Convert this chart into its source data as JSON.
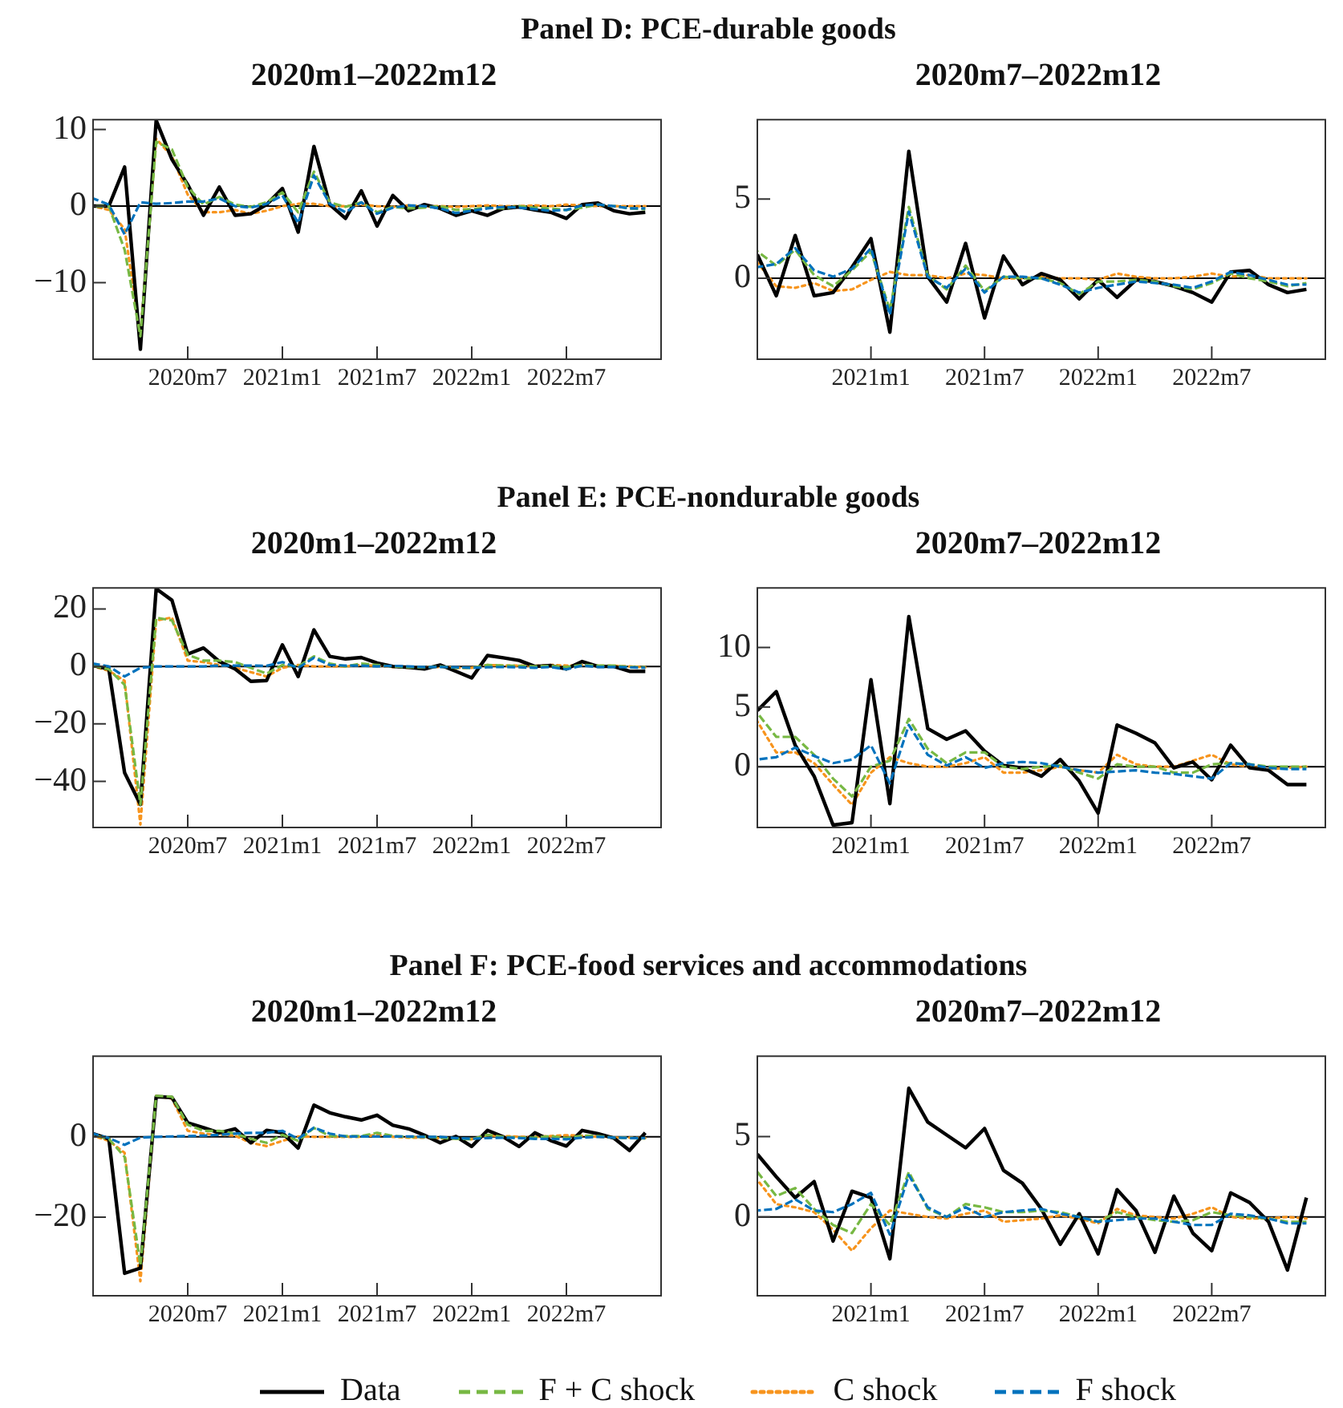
{
  "chart_data": [
    {
      "type": "line",
      "title": "2020m1–2022m12",
      "legend": "bottom",
      "annotations": [
        "Panel D: PCE-durable goods"
      ],
      "x": [
        "2020-01",
        "2020-02",
        "2020-03",
        "2020-04",
        "2020-05",
        "2020-06",
        "2020-07",
        "2020-08",
        "2020-09",
        "2020-10",
        "2020-11",
        "2020-12",
        "2021-01",
        "2021-02",
        "2021-03",
        "2021-04",
        "2021-05",
        "2021-06",
        "2021-07",
        "2021-08",
        "2021-09",
        "2021-10",
        "2021-11",
        "2021-12",
        "2022-01",
        "2022-02",
        "2022-03",
        "2022-04",
        "2022-05",
        "2022-06",
        "2022-07",
        "2022-08",
        "2022-09",
        "2022-10",
        "2022-11",
        "2022-12"
      ],
      "xlim": [
        "2020-01",
        "2023-01"
      ],
      "xticks": [
        {
          "value": "2020-07",
          "label": "2020m7"
        },
        {
          "value": "2021-01",
          "label": "2021m1"
        },
        {
          "value": "2021-07",
          "label": "2021m7"
        },
        {
          "value": "2022-01",
          "label": "2022m1"
        },
        {
          "value": "2022-07",
          "label": "2022m7"
        }
      ],
      "ylim": [
        -20,
        11.3
      ],
      "yticks": [
        -10,
        0,
        10
      ],
      "ref_lines": [
        {
          "axis": "y",
          "value": 0
        }
      ],
      "series": [
        {
          "name": "Data",
          "color": "#000000",
          "line_style": "solid",
          "values": [
            0,
            0,
            5.1,
            -18.7,
            11.2,
            6.1,
            2.8,
            -1.2,
            2.5,
            -1.2,
            -1.0,
            0.2,
            2.3,
            -3.4,
            7.8,
            0.2,
            -1.6,
            2.0,
            -2.6,
            1.4,
            -0.6,
            0.2,
            -0.3,
            -1.2,
            -0.6,
            -1.2,
            -0.3,
            -0.1,
            -0.5,
            -0.8,
            -1.6,
            0.2,
            0.4,
            -0.6,
            -1.0,
            -0.8
          ]
        },
        {
          "name": "F + C shock",
          "color": "#77b843",
          "line_style": "dashed",
          "values": [
            0,
            0,
            -5.7,
            -17,
            8.4,
            7.4,
            2.5,
            0.2,
            1.2,
            0.2,
            -0.1,
            0.5,
            1.8,
            -0.8,
            4.5,
            0.5,
            -0.1,
            0.5,
            -0.8,
            -0.1,
            -0.3,
            -0.2,
            0,
            -0.5,
            -0.4,
            -0.2,
            -0.3,
            0,
            -0.2,
            -0.3,
            -0.5,
            -0.2,
            0.2,
            0,
            -0.3,
            -0.4
          ]
        },
        {
          "name": "C shock",
          "color": "#f7941d",
          "line_style": "dotted",
          "values": [
            0,
            -0.5,
            -3,
            -17,
            8.8,
            6.5,
            1.5,
            -0.8,
            -0.8,
            -0.5,
            -1.0,
            -0.6,
            0,
            0.3,
            0.3,
            0,
            0,
            0.2,
            0,
            -0.1,
            0.1,
            0,
            0,
            -0.1,
            0,
            0.1,
            0,
            0,
            0.1,
            0,
            0.2,
            0.1,
            0,
            0,
            0,
            0
          ]
        },
        {
          "name": "F shock",
          "color": "#0072bd",
          "line_style": "dashed",
          "values": [
            1.0,
            0.2,
            -3.7,
            0.5,
            0.3,
            0.4,
            0.6,
            0.6,
            1.0,
            0,
            -0.2,
            0.3,
            1.4,
            -2.2,
            4.0,
            0.3,
            -0.8,
            0.5,
            -1.0,
            -0.2,
            0.1,
            0,
            -0.3,
            -0.9,
            -0.6,
            -0.3,
            -0.1,
            -0.2,
            -0.4,
            -0.6,
            -0.5,
            0.1,
            0.2,
            0,
            -0.3,
            -0.3
          ]
        }
      ]
    },
    {
      "type": "line",
      "title": "2020m7–2022m12",
      "legend": "bottom",
      "x": [
        "2020-07",
        "2020-08",
        "2020-09",
        "2020-10",
        "2020-11",
        "2020-12",
        "2021-01",
        "2021-02",
        "2021-03",
        "2021-04",
        "2021-05",
        "2021-06",
        "2021-07",
        "2021-08",
        "2021-09",
        "2021-10",
        "2021-11",
        "2021-12",
        "2022-01",
        "2022-02",
        "2022-03",
        "2022-04",
        "2022-05",
        "2022-06",
        "2022-07",
        "2022-08",
        "2022-09",
        "2022-10",
        "2022-11",
        "2022-12"
      ],
      "xlim": [
        "2020-07",
        "2023-01"
      ],
      "xticks": [
        {
          "value": "2021-01",
          "label": "2021m1"
        },
        {
          "value": "2021-07",
          "label": "2021m7"
        },
        {
          "value": "2022-01",
          "label": "2022m1"
        },
        {
          "value": "2022-07",
          "label": "2022m7"
        }
      ],
      "ylim": [
        -5.1,
        10
      ],
      "yticks": [
        0,
        5
      ],
      "ref_lines": [
        {
          "axis": "y",
          "value": 0
        }
      ],
      "series": [
        {
          "name": "Data",
          "color": "#000000",
          "line_style": "solid",
          "values": [
            1.5,
            -1.1,
            2.7,
            -1.1,
            -0.9,
            0.7,
            2.5,
            -3.4,
            8.0,
            0.1,
            -1.5,
            2.2,
            -2.5,
            1.4,
            -0.4,
            0.3,
            -0.1,
            -1.3,
            -0.1,
            -1.2,
            -0.1,
            -0.2,
            -0.5,
            -0.9,
            -1.5,
            0.4,
            0.5,
            -0.4,
            -0.9,
            -0.7
          ]
        },
        {
          "name": "F + C shock",
          "color": "#77b843",
          "line_style": "dashed",
          "values": [
            1.7,
            0.8,
            1.8,
            0.2,
            -0.5,
            0.5,
            1.7,
            -2.0,
            4.5,
            0.2,
            -0.7,
            0.8,
            -0.8,
            0.1,
            0,
            0,
            -0.3,
            -1.0,
            -0.2,
            -0.2,
            -0.1,
            -0.2,
            -0.5,
            -0.7,
            -0.3,
            0.3,
            0,
            -0.2,
            -0.5,
            -0.3
          ]
        },
        {
          "name": "C shock",
          "color": "#f7941d",
          "line_style": "dotted",
          "values": [
            1.0,
            -0.5,
            -0.6,
            -0.3,
            -0.8,
            -0.7,
            -0.1,
            0.4,
            0.2,
            0.2,
            0,
            0.3,
            0.2,
            0,
            0,
            0.1,
            0,
            0,
            -0.1,
            0.3,
            0.1,
            0,
            0,
            0.1,
            0.3,
            0.1,
            0.2,
            0,
            0,
            0
          ]
        },
        {
          "name": "F shock",
          "color": "#0072bd",
          "line_style": "dashed",
          "values": [
            0.7,
            0.9,
            1.9,
            0.5,
            0.1,
            0.6,
            1.9,
            -2.3,
            4.2,
            0.1,
            -0.6,
            0.6,
            -0.9,
            0.1,
            0.1,
            0,
            -0.4,
            -0.9,
            -0.6,
            -0.4,
            -0.2,
            -0.3,
            -0.4,
            -0.6,
            -0.2,
            0.4,
            0.2,
            -0.1,
            -0.4,
            -0.4
          ]
        }
      ]
    },
    {
      "type": "line",
      "title": "2020m1–2022m12",
      "legend": "bottom",
      "annotations": [
        "Panel E: PCE-nondurable goods"
      ],
      "x": [
        "2020-01",
        "2020-02",
        "2020-03",
        "2020-04",
        "2020-05",
        "2020-06",
        "2020-07",
        "2020-08",
        "2020-09",
        "2020-10",
        "2020-11",
        "2020-12",
        "2021-01",
        "2021-02",
        "2021-03",
        "2021-04",
        "2021-05",
        "2021-06",
        "2021-07",
        "2021-08",
        "2021-09",
        "2021-10",
        "2021-11",
        "2021-12",
        "2022-01",
        "2022-02",
        "2022-03",
        "2022-04",
        "2022-05",
        "2022-06",
        "2022-07",
        "2022-08",
        "2022-09",
        "2022-10",
        "2022-11",
        "2022-12"
      ],
      "xlim": [
        "2020-01",
        "2023-01"
      ],
      "xticks": [
        {
          "value": "2020-07",
          "label": "2020m7"
        },
        {
          "value": "2021-01",
          "label": "2021m1"
        },
        {
          "value": "2021-07",
          "label": "2021m7"
        },
        {
          "value": "2022-01",
          "label": "2022m1"
        },
        {
          "value": "2022-07",
          "label": "2022m7"
        }
      ],
      "ylim": [
        -56,
        27.3
      ],
      "yticks": [
        -40,
        -20,
        0,
        20
      ],
      "ref_lines": [
        {
          "axis": "y",
          "value": 0
        }
      ],
      "series": [
        {
          "name": "Data",
          "color": "#000000",
          "line_style": "solid",
          "values": [
            0.3,
            -0.9,
            -37,
            -48,
            27,
            23,
            4.3,
            6.4,
            1.7,
            -0.9,
            -5.2,
            -4.9,
            7.5,
            -3.5,
            12.7,
            3.5,
            2.6,
            3.1,
            1.2,
            0,
            -0.3,
            -0.9,
            0.5,
            -1.7,
            -4.0,
            3.8,
            3.0,
            2.1,
            0,
            0.3,
            -0.9,
            1.7,
            0,
            0,
            -1.7,
            -1.7
          ]
        },
        {
          "name": "F + C shock",
          "color": "#77b843",
          "line_style": "dashed",
          "values": [
            0.3,
            -1,
            -6.4,
            -48,
            16.9,
            16,
            4,
            2,
            2,
            1.5,
            -0.5,
            -2.5,
            0.5,
            0,
            3.5,
            1,
            0,
            1,
            0.5,
            0,
            -0.3,
            -0.3,
            0,
            -0.5,
            -0.5,
            0.5,
            0.3,
            0.2,
            0,
            0.2,
            -0.2,
            0.5,
            0.3,
            0.3,
            -0.2,
            -0.3
          ]
        },
        {
          "name": "C shock",
          "color": "#f7941d",
          "line_style": "dotted",
          "values": [
            0,
            -1.5,
            -5,
            -55,
            16,
            17,
            2,
            1.5,
            0.5,
            -0.5,
            -2,
            -3.5,
            -0.5,
            0.5,
            0,
            0,
            0,
            0.5,
            0.2,
            -0.2,
            -0.5,
            -0.3,
            -0.2,
            -0.5,
            -0.5,
            0.5,
            0.3,
            0.3,
            0.2,
            0.5,
            0.3,
            0.5,
            0.2,
            0.2,
            0,
            -0.3
          ]
        },
        {
          "name": "F shock",
          "color": "#0072bd",
          "line_style": "dashed",
          "values": [
            1,
            0,
            -3.5,
            -0.5,
            0,
            0,
            0,
            0,
            0.3,
            0.3,
            0.3,
            0.2,
            1.5,
            -0.5,
            3,
            0.5,
            0.3,
            0.3,
            0,
            0.2,
            0,
            -0.2,
            -0.2,
            -0.3,
            -0.5,
            -0.3,
            -0.2,
            -0.3,
            -0.5,
            -0.2,
            -1,
            0.3,
            -0.2,
            -0.2,
            -0.3,
            -0.5
          ]
        }
      ]
    },
    {
      "type": "line",
      "title": "2020m7–2022m12",
      "legend": "bottom",
      "x": [
        "2020-07",
        "2020-08",
        "2020-09",
        "2020-10",
        "2020-11",
        "2020-12",
        "2021-01",
        "2021-02",
        "2021-03",
        "2021-04",
        "2021-05",
        "2021-06",
        "2021-07",
        "2021-08",
        "2021-09",
        "2021-10",
        "2021-11",
        "2021-12",
        "2022-01",
        "2022-02",
        "2022-03",
        "2022-04",
        "2022-05",
        "2022-06",
        "2022-07",
        "2022-08",
        "2022-09",
        "2022-10",
        "2022-11",
        "2022-12"
      ],
      "xlim": [
        "2020-07",
        "2023-01"
      ],
      "xticks": [
        {
          "value": "2021-01",
          "label": "2021m1"
        },
        {
          "value": "2021-07",
          "label": "2021m7"
        },
        {
          "value": "2022-01",
          "label": "2022m1"
        },
        {
          "value": "2022-07",
          "label": "2022m7"
        }
      ],
      "ylim": [
        -5.1,
        15
      ],
      "yticks": [
        0,
        5,
        10
      ],
      "ref_lines": [
        {
          "axis": "y",
          "value": 0
        }
      ],
      "series": [
        {
          "name": "Data",
          "color": "#000000",
          "line_style": "solid",
          "values": [
            4.7,
            6.3,
            1.8,
            -0.8,
            -4.9,
            -4.7,
            7.3,
            -3.1,
            12.6,
            3.2,
            2.3,
            3.0,
            1.3,
            0.1,
            -0.1,
            -0.8,
            0.6,
            -1.2,
            -3.9,
            3.5,
            2.8,
            2.0,
            -0.1,
            0.4,
            -1.1,
            1.8,
            -0.1,
            -0.3,
            -1.5,
            -1.5
          ]
        },
        {
          "name": "F + C shock",
          "color": "#77b843",
          "line_style": "dashed",
          "values": [
            4.5,
            2.5,
            2.5,
            1.0,
            -1.0,
            -2.5,
            0.0,
            0.5,
            4.0,
            1.5,
            0.3,
            1.2,
            1.2,
            0,
            -0.2,
            0,
            0.1,
            -0.5,
            -1.0,
            0.2,
            0,
            0,
            -0.5,
            -0.5,
            0.2,
            0.3,
            0.2,
            0,
            0,
            0
          ]
        },
        {
          "name": "C shock",
          "color": "#f7941d",
          "line_style": "dotted",
          "values": [
            3.8,
            1.2,
            1.2,
            0.3,
            -1.5,
            -3.2,
            -0.5,
            0.8,
            0.3,
            0,
            0,
            0.3,
            0.8,
            -0.5,
            -0.5,
            -0.3,
            0,
            -0.3,
            -0.5,
            1.0,
            0.2,
            0,
            0,
            0.5,
            1.0,
            0.2,
            0,
            -0.2,
            -0.1,
            0
          ]
        },
        {
          "name": "F shock",
          "color": "#0072bd",
          "line_style": "dashed",
          "values": [
            0.6,
            0.8,
            1.6,
            0.9,
            0.3,
            0.6,
            1.8,
            -1.4,
            3.5,
            1.0,
            0.1,
            0.8,
            -0.1,
            0.3,
            0.4,
            0.3,
            0,
            -0.3,
            -0.5,
            -0.4,
            -0.3,
            -0.5,
            -0.6,
            -0.8,
            -1.0,
            0.3,
            0.2,
            -0.1,
            -0.2,
            -0.2
          ]
        }
      ]
    },
    {
      "type": "line",
      "title": "2020m1–2022m12",
      "legend": "bottom",
      "annotations": [
        "Panel F: PCE-food services and accommodations"
      ],
      "x": [
        "2020-01",
        "2020-02",
        "2020-03",
        "2020-04",
        "2020-05",
        "2020-06",
        "2020-07",
        "2020-08",
        "2020-09",
        "2020-10",
        "2020-11",
        "2020-12",
        "2021-01",
        "2021-02",
        "2021-03",
        "2021-04",
        "2021-05",
        "2021-06",
        "2021-07",
        "2021-08",
        "2021-09",
        "2021-10",
        "2021-11",
        "2021-12",
        "2022-01",
        "2022-02",
        "2022-03",
        "2022-04",
        "2022-05",
        "2022-06",
        "2022-07",
        "2022-08",
        "2022-09",
        "2022-10",
        "2022-11",
        "2022-12"
      ],
      "xlim": [
        "2020-01",
        "2023-01"
      ],
      "xticks": [
        {
          "value": "2020-07",
          "label": "2020m7"
        },
        {
          "value": "2021-01",
          "label": "2021m1"
        },
        {
          "value": "2021-07",
          "label": "2021m7"
        },
        {
          "value": "2022-01",
          "label": "2022m1"
        },
        {
          "value": "2022-07",
          "label": "2022m7"
        }
      ],
      "ylim": [
        -39.6,
        20.1
      ],
      "yticks": [
        -20,
        0
      ],
      "ref_lines": [
        {
          "axis": "y",
          "value": 0
        }
      ],
      "series": [
        {
          "name": "Data",
          "color": "#000000",
          "line_style": "solid",
          "values": [
            0.8,
            -0.5,
            -34,
            -32.7,
            10,
            9.8,
            3.5,
            2.3,
            1,
            2,
            -1.5,
            1.6,
            1,
            -2.8,
            7.9,
            6.0,
            5.0,
            4.2,
            5.4,
            2.9,
            2.0,
            0.4,
            -1.5,
            0.1,
            -2.4,
            1.6,
            0,
            -2.4,
            1.0,
            -0.9,
            -2.3,
            1.6,
            0.8,
            -0.3,
            -3.4,
            1.0
          ]
        },
        {
          "name": "F + C shock",
          "color": "#77b843",
          "line_style": "dashed",
          "values": [
            0.5,
            -0.5,
            -5,
            -32,
            10.2,
            10,
            3,
            1.5,
            1.5,
            0.8,
            -0.5,
            -1.5,
            0.5,
            -1.0,
            2.2,
            0.2,
            0.2,
            0.2,
            1,
            0.2,
            0,
            0,
            -0.2,
            -0.5,
            -0.6,
            0.5,
            0,
            -0.2,
            -0.2,
            0.2,
            -0.3,
            0.3,
            0.2,
            -0.2,
            -0.3,
            -0.4
          ]
        },
        {
          "name": "C shock",
          "color": "#f7941d",
          "line_style": "dotted",
          "values": [
            0.3,
            -1.0,
            -4,
            -36,
            10.2,
            9.5,
            1.5,
            0.8,
            0.5,
            0.3,
            -1.5,
            -2.3,
            -1.0,
            0.1,
            0,
            0,
            0,
            0,
            0.5,
            0,
            -0.2,
            -0.2,
            -0.4,
            -0.5,
            -0.6,
            0.4,
            0.2,
            0,
            0,
            0.2,
            0.4,
            0.3,
            0,
            -0.2,
            -0.2,
            -0.3
          ]
        },
        {
          "name": "F shock",
          "color": "#0072bd",
          "line_style": "dashed",
          "values": [
            0.8,
            -0.3,
            -2.0,
            -0.2,
            0,
            0.1,
            0.2,
            0.3,
            0.5,
            0.8,
            1.0,
            1.0,
            1.5,
            -0.5,
            2.3,
            0.8,
            0.1,
            0.1,
            0.1,
            0.1,
            0.1,
            0,
            0,
            -0.3,
            -0.5,
            -0.3,
            -0.2,
            -0.3,
            -0.5,
            -0.5,
            -0.6,
            -0.2,
            0,
            -0.2,
            -0.3,
            -0.3
          ]
        }
      ]
    },
    {
      "type": "line",
      "title": "2020m7–2022m12",
      "legend": "bottom",
      "x": [
        "2020-07",
        "2020-08",
        "2020-09",
        "2020-10",
        "2020-11",
        "2020-12",
        "2021-01",
        "2021-02",
        "2021-03",
        "2021-04",
        "2021-05",
        "2021-06",
        "2021-07",
        "2021-08",
        "2021-09",
        "2021-10",
        "2021-11",
        "2021-12",
        "2022-01",
        "2022-02",
        "2022-03",
        "2022-04",
        "2022-05",
        "2022-06",
        "2022-07",
        "2022-08",
        "2022-09",
        "2022-10",
        "2022-11",
        "2022-12"
      ],
      "xlim": [
        "2020-07",
        "2023-01"
      ],
      "xticks": [
        {
          "value": "2021-01",
          "label": "2021m1"
        },
        {
          "value": "2021-07",
          "label": "2021m7"
        },
        {
          "value": "2022-01",
          "label": "2022m1"
        },
        {
          "value": "2022-07",
          "label": "2022m7"
        }
      ],
      "ylim": [
        -4.9,
        10
      ],
      "yticks": [
        0,
        5
      ],
      "ref_lines": [
        {
          "axis": "y",
          "value": 0
        }
      ],
      "series": [
        {
          "name": "Data",
          "color": "#000000",
          "line_style": "solid",
          "values": [
            3.9,
            2.5,
            1.2,
            2.2,
            -1.5,
            1.6,
            1.2,
            -2.6,
            8.0,
            5.9,
            5.1,
            4.3,
            5.5,
            2.9,
            2.1,
            0.5,
            -1.7,
            0.2,
            -2.3,
            1.7,
            0.4,
            -2.2,
            1.3,
            -1.0,
            -2.1,
            1.5,
            0.9,
            -0.3,
            -3.3,
            1.2
          ]
        },
        {
          "name": "F + C shock",
          "color": "#77b843",
          "line_style": "dashed",
          "values": [
            2.8,
            1.3,
            1.8,
            0.5,
            -0.5,
            -1.0,
            0.8,
            -0.5,
            2.8,
            0.5,
            0,
            0.8,
            0.6,
            0.3,
            0.3,
            0.4,
            0.3,
            0,
            -0.3,
            0.3,
            0,
            -0.2,
            -0.3,
            -0.2,
            0.3,
            0.1,
            0,
            -0.1,
            -0.3,
            -0.3
          ]
        },
        {
          "name": "C shock",
          "color": "#f7941d",
          "line_style": "dotted",
          "values": [
            2.3,
            0.8,
            0.6,
            0.3,
            -0.8,
            -2.1,
            -0.7,
            0.4,
            0.2,
            0,
            -0.1,
            0.2,
            0.4,
            -0.3,
            -0.2,
            -0.1,
            0.1,
            -0.1,
            -0.4,
            0.5,
            0.1,
            0,
            -0.1,
            0.2,
            0.6,
            0,
            -0.1,
            -0.1,
            0,
            -0.1
          ]
        },
        {
          "name": "F shock",
          "color": "#0072bd",
          "line_style": "dashed",
          "values": [
            0.4,
            0.5,
            1.1,
            0.4,
            0.3,
            0.8,
            1.5,
            -1.1,
            2.6,
            0.6,
            0,
            0.6,
            0,
            0.3,
            0.4,
            0.5,
            0.2,
            0,
            -0.3,
            -0.2,
            -0.1,
            -0.1,
            -0.3,
            -0.5,
            -0.5,
            0.2,
            0.1,
            -0.1,
            -0.4,
            -0.4
          ]
        }
      ]
    }
  ]
}
